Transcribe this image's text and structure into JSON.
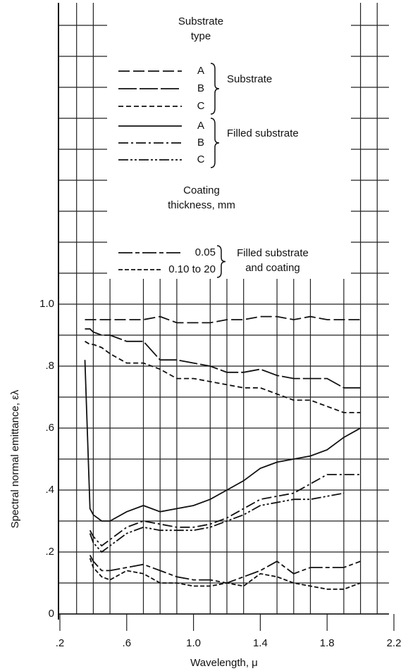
{
  "chart_data": {
    "type": "line",
    "xlabel": "Wavelength, μ",
    "ylabel": "Spectral normal emittance, ελ",
    "legend_title": "Substrate type",
    "coating_title": "Coating thickness, mm",
    "xlim": [
      0.2,
      2.2
    ],
    "xticks": [
      {
        "value": 0.2,
        "label": ".2"
      },
      {
        "value": 0.6,
        "label": ".6"
      },
      {
        "value": 1.0,
        "label": "1.0"
      },
      1.4,
      1.8,
      2.2
    ],
    "ylim": [
      0,
      1.0
    ],
    "yticks": [
      0,
      {
        "value": 0.2,
        "label": ".2"
      },
      {
        "value": 0.4,
        "label": ".4"
      },
      {
        "value": 0.6,
        "label": ".6"
      },
      {
        "value": 0.8,
        "label": ".8"
      },
      {
        "value": 1.0,
        "label": "1.0"
      }
    ],
    "grid": true,
    "x": [
      0.35,
      0.38,
      0.4,
      0.45,
      0.5,
      0.6,
      0.7,
      0.8,
      0.9,
      1.0,
      1.1,
      1.2,
      1.3,
      1.4,
      1.5,
      1.6,
      1.7,
      1.8,
      1.9,
      2.0
    ],
    "series": [
      {
        "name": "A",
        "group": "Substrate",
        "color": "#111",
        "dash": "16 5",
        "values": [
          0.95,
          0.95,
          0.95,
          0.95,
          0.95,
          0.95,
          0.95,
          0.96,
          0.94,
          0.94,
          0.94,
          0.95,
          0.95,
          0.96,
          0.96,
          0.95,
          0.96,
          0.95,
          0.95,
          0.95
        ]
      },
      {
        "name": "B",
        "group": "Substrate",
        "color": "#111",
        "dash": "26 4",
        "values": [
          0.92,
          0.92,
          0.91,
          0.9,
          0.9,
          0.88,
          0.88,
          0.82,
          0.82,
          0.81,
          0.8,
          0.78,
          0.78,
          0.79,
          0.77,
          0.76,
          0.76,
          0.76,
          0.73,
          0.73
        ]
      },
      {
        "name": "C",
        "group": "Substrate",
        "color": "#111",
        "dash": "7 4",
        "values": [
          0.88,
          0.87,
          0.87,
          0.86,
          0.84,
          0.81,
          0.81,
          0.79,
          0.76,
          0.76,
          0.75,
          0.74,
          0.73,
          0.73,
          0.71,
          0.69,
          0.69,
          0.67,
          0.65,
          0.65
        ]
      },
      {
        "name": "A",
        "group": "Filled substrate",
        "color": "#111",
        "dash": "none",
        "values": [
          0.82,
          0.34,
          0.32,
          0.3,
          0.3,
          0.33,
          0.35,
          0.33,
          0.34,
          0.35,
          0.37,
          0.4,
          0.43,
          0.47,
          0.49,
          0.5,
          0.51,
          0.53,
          0.57,
          0.6
        ]
      },
      {
        "name": "B",
        "group": "Filled substrate",
        "color": "#111",
        "dash": "14 4 3 4",
        "values": [
          null,
          0.27,
          0.25,
          0.22,
          0.24,
          0.28,
          0.3,
          0.29,
          0.28,
          0.28,
          0.29,
          0.31,
          0.34,
          0.37,
          0.38,
          0.39,
          0.42,
          0.45,
          0.45,
          0.45
        ]
      },
      {
        "name": "C",
        "group": "Filled substrate",
        "color": "#111",
        "dash": "14 3 3 3 3 3",
        "values": [
          null,
          0.26,
          0.23,
          0.2,
          0.22,
          0.26,
          0.28,
          0.27,
          0.27,
          0.27,
          0.28,
          0.3,
          0.32,
          0.35,
          0.36,
          0.37,
          0.37,
          0.38,
          0.39,
          null
        ]
      },
      {
        "name": "0.05",
        "group": "Filled substrate and coating",
        "color": "#111",
        "dash": "20 4 6 4",
        "values": [
          null,
          0.19,
          0.17,
          0.14,
          0.14,
          0.15,
          0.16,
          0.14,
          0.12,
          0.11,
          0.11,
          0.1,
          0.12,
          0.14,
          0.17,
          0.13,
          0.15,
          0.15,
          0.15,
          0.17
        ]
      },
      {
        "name": "0.10 to 20",
        "group": "Filled substrate and coating",
        "color": "#111",
        "dash": "6 3",
        "values": [
          null,
          0.18,
          0.15,
          0.12,
          0.11,
          0.14,
          0.13,
          0.1,
          0.1,
          0.09,
          0.09,
          0.1,
          0.09,
          0.13,
          0.12,
          0.1,
          0.09,
          0.08,
          0.08,
          0.1
        ]
      }
    ]
  }
}
